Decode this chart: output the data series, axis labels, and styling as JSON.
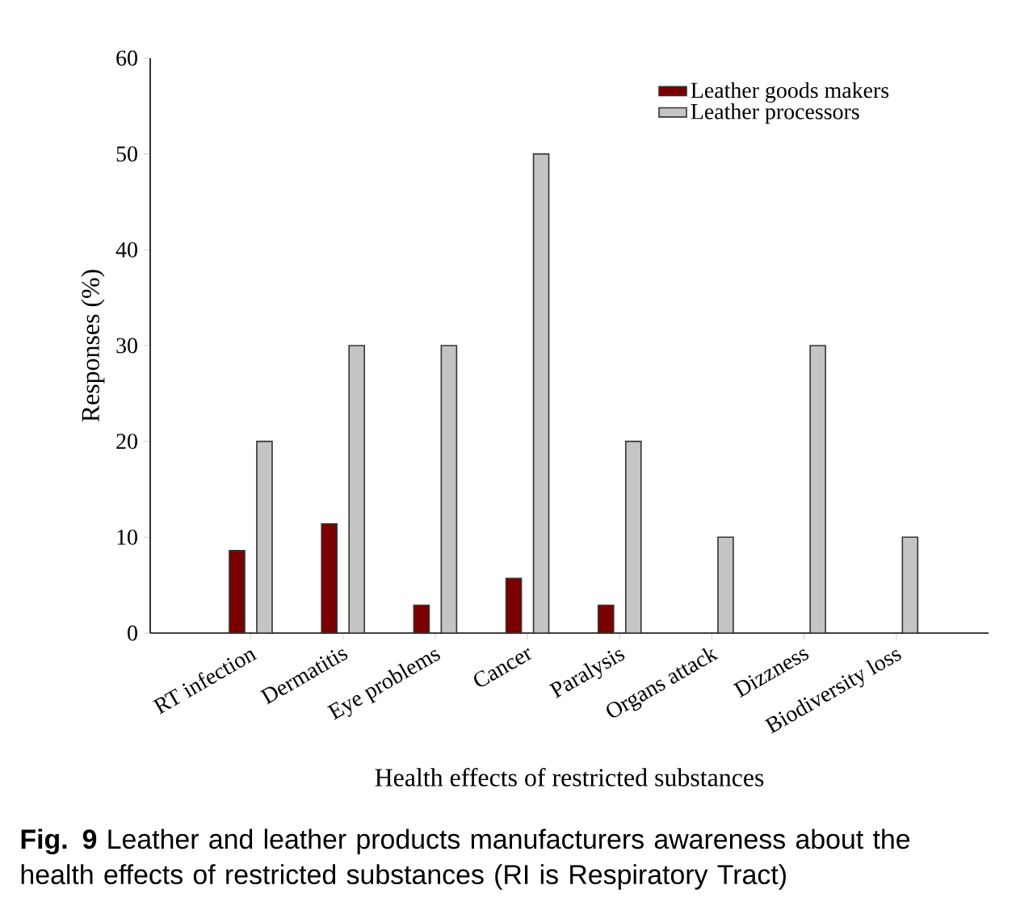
{
  "chart_data": {
    "type": "bar",
    "xlabel": "Health effects of restricted substances",
    "ylabel": "Responses (%)",
    "categories": [
      "RT infection",
      "Dermatitis",
      "Eye problems",
      "Cancer",
      "Paralysis",
      "Organs attack",
      "Dizzness",
      "Biodiversity loss"
    ],
    "series": [
      {
        "name": "Leather goods makers",
        "color": "#7a0000",
        "values": [
          8.6,
          11.4,
          2.9,
          5.7,
          2.9,
          null,
          null,
          null
        ]
      },
      {
        "name": "Leather processors",
        "color": "#c4c4c4",
        "values": [
          20,
          30,
          30,
          50,
          20,
          10,
          30,
          10
        ]
      }
    ],
    "ylim": [
      0,
      60
    ],
    "yticks": [
      0,
      10,
      20,
      30,
      40,
      50,
      60
    ],
    "legend": "top right",
    "grid": false,
    "annotations": [
      "**Fig. 9** Leather and leather products manufacturers awareness about the health effects of restricted substances (RI is Respiratory Tract)"
    ]
  }
}
